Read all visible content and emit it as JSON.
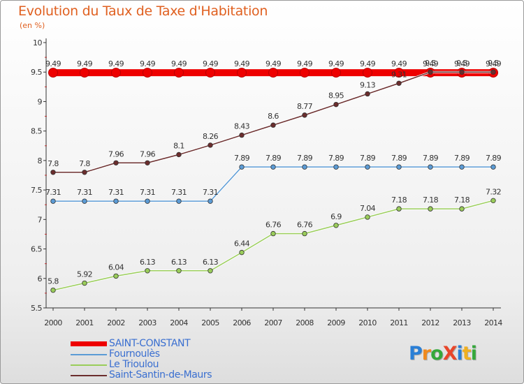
{
  "title": "Evolution du Taux de Taxe d'Habitation",
  "unit_label": "(en %)",
  "logo": {
    "letters": [
      {
        "ch": "P",
        "color": "#2a7fd6"
      },
      {
        "ch": "r",
        "color": "#f08a1e"
      },
      {
        "ch": "o",
        "color": "#35a83b"
      },
      {
        "ch": "X",
        "color": "#e8462a"
      },
      {
        "ch": "i",
        "color": "#2a7fd6"
      },
      {
        "ch": "t",
        "color": "#f0b020"
      },
      {
        "ch": "i",
        "color": "#35a83b"
      }
    ]
  },
  "chart_data": {
    "type": "line",
    "x": [
      "2000",
      "2001",
      "2002",
      "2003",
      "2004",
      "2005",
      "2006",
      "2007",
      "2008",
      "2009",
      "2010",
      "2011",
      "2012",
      "2013",
      "2014"
    ],
    "ylim": [
      5.5,
      10
    ],
    "yticks": [
      "5.5",
      "6",
      "6.5",
      "7",
      "7.5",
      "8",
      "8.5",
      "9",
      "9.5",
      "10"
    ],
    "grid": false,
    "legend_position": "bottom-left",
    "series": [
      {
        "name": "SAINT-CONSTANT",
        "color": "#ee0000",
        "values": [
          9.49,
          9.49,
          9.49,
          9.49,
          9.49,
          9.49,
          9.49,
          9.49,
          9.49,
          9.49,
          9.49,
          9.49,
          9.49,
          9.49,
          9.49
        ],
        "labels": [
          "9.49",
          "9.49",
          "9.49",
          "9.49",
          "9.49",
          "9.49",
          "9.49",
          "9.49",
          "9.49",
          "9.49",
          "9.49",
          "9.49",
          "9.49",
          "9.49",
          "9.49"
        ]
      },
      {
        "name": "Fournoulès",
        "color": "#5b9bd5",
        "values": [
          7.31,
          7.31,
          7.31,
          7.31,
          7.31,
          7.31,
          7.89,
          7.89,
          7.89,
          7.89,
          7.89,
          7.89,
          7.89,
          7.89,
          7.89
        ],
        "labels": [
          "7.31",
          "7.31",
          "7.31",
          "7.31",
          "7.31",
          "7.31",
          "7.89",
          "7.89",
          "7.89",
          "7.89",
          "7.89",
          "7.89",
          "7.89",
          "7.89",
          "7.89"
        ]
      },
      {
        "name": "Le Trioulou",
        "color": "#9acd5a",
        "values": [
          5.8,
          5.92,
          6.04,
          6.13,
          6.13,
          6.13,
          6.44,
          6.76,
          6.76,
          6.9,
          7.04,
          7.18,
          7.18,
          7.18,
          7.32
        ],
        "labels": [
          "5.8",
          "5.92",
          "6.04",
          "6.13",
          "6.13",
          "6.13",
          "6.44",
          "6.76",
          "6.76",
          "6.9",
          "7.04",
          "7.18",
          "7.18",
          "7.18",
          "7.32"
        ]
      },
      {
        "name": "Saint-Santin-de-Maurs",
        "color": "#6b2d2d",
        "values": [
          7.8,
          7.8,
          7.96,
          7.96,
          8.1,
          8.26,
          8.43,
          8.6,
          8.77,
          8.95,
          9.13,
          9.31,
          9.5,
          9.5,
          9.5
        ],
        "labels": [
          "7.8",
          "7.8",
          "7.96",
          "7.96",
          "8.1",
          "8.26",
          "8.43",
          "8.6",
          "8.77",
          "8.95",
          "9.13",
          "9.31",
          "9.5",
          "9.5",
          "9.5"
        ]
      }
    ]
  }
}
